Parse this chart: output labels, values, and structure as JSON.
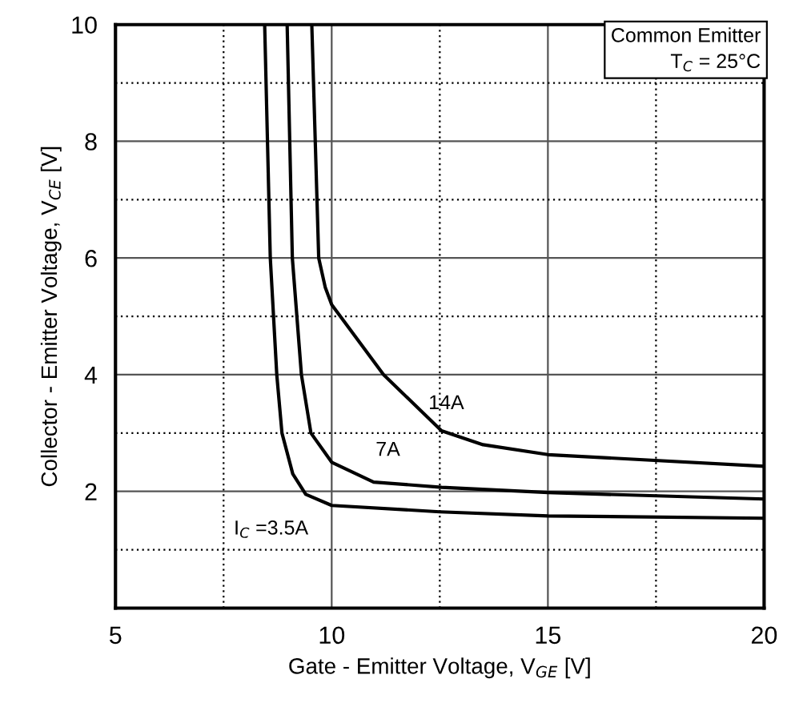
{
  "chart_data": {
    "type": "line",
    "xlabel": "Gate - Emitter Voltage, V$_{GE}$ [V]",
    "ylabel": "Collector - Emitter Voltage, V$_{CE}$ [V]",
    "xlim": [
      5,
      20
    ],
    "ylim": [
      0,
      10
    ],
    "xticks": [
      5,
      {
        "value": 7.5,
        "label": null
      },
      10,
      {
        "value": 12.5,
        "label": null
      },
      15,
      {
        "value": 17.5,
        "label": null
      },
      20
    ],
    "yticks": [
      {
        "value": 1,
        "label": null
      },
      2,
      {
        "value": 3,
        "label": null
      },
      4,
      {
        "value": 5,
        "label": null
      },
      6,
      {
        "value": 7,
        "label": null
      },
      8,
      {
        "value": 9,
        "label": null
      },
      10
    ],
    "grid": true,
    "line_style": "solid",
    "marker": "none",
    "series": [
      {
        "name": "I$_{C}$ =3.5A",
        "color": "#000000",
        "x": [
          8.45,
          8.58,
          8.73,
          8.85,
          9.1,
          9.4,
          10,
          12.5,
          15,
          20
        ],
        "values": [
          10,
          6,
          4,
          3,
          2.3,
          1.95,
          1.76,
          1.65,
          1.58,
          1.54
        ]
      },
      {
        "name": "7A",
        "color": "#000000",
        "x": [
          8.97,
          9.09,
          9.3,
          9.52,
          10,
          10.97,
          12.54,
          15,
          20
        ],
        "values": [
          10,
          6,
          4,
          3,
          2.5,
          2.16,
          2.07,
          1.98,
          1.87
        ]
      },
      {
        "name": "14A",
        "color": "#000000",
        "x": [
          9.54,
          9.7,
          9.85,
          10,
          11.2,
          12.54,
          13.5,
          15,
          20
        ],
        "values": [
          10,
          6,
          5.5,
          5.2,
          4.0,
          3.04,
          2.8,
          2.63,
          2.43
        ]
      }
    ],
    "annotations": [
      "Common Emitter\nT$_{C}$ = 25°C"
    ]
  }
}
